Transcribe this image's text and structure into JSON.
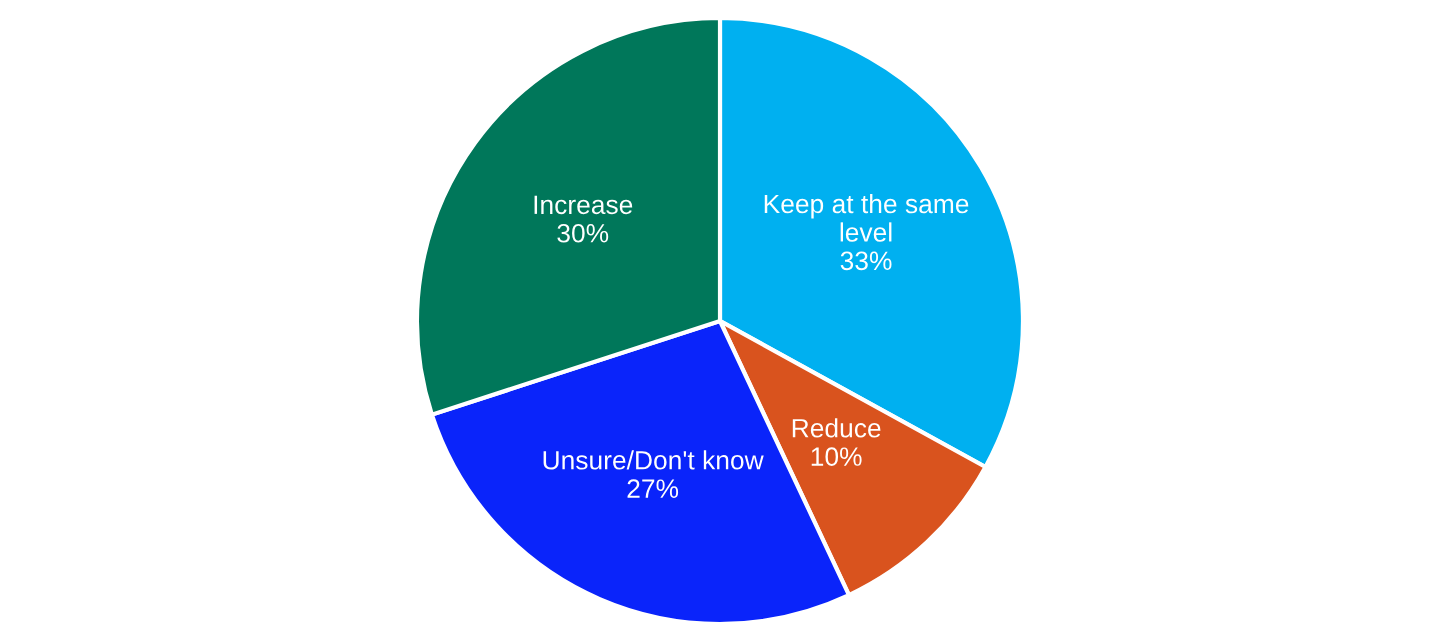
{
  "chart_data": {
    "type": "pie",
    "categories": [
      "Keep at the same level",
      "Reduce",
      "Unsure/Don't know",
      "Increase"
    ],
    "values": [
      33,
      10,
      27,
      30
    ],
    "colors": [
      "#00b0f0",
      "#d9531e",
      "#0a24fa",
      "#00775a"
    ],
    "value_labels": [
      "33%",
      "10%",
      "27%",
      "30%"
    ]
  }
}
